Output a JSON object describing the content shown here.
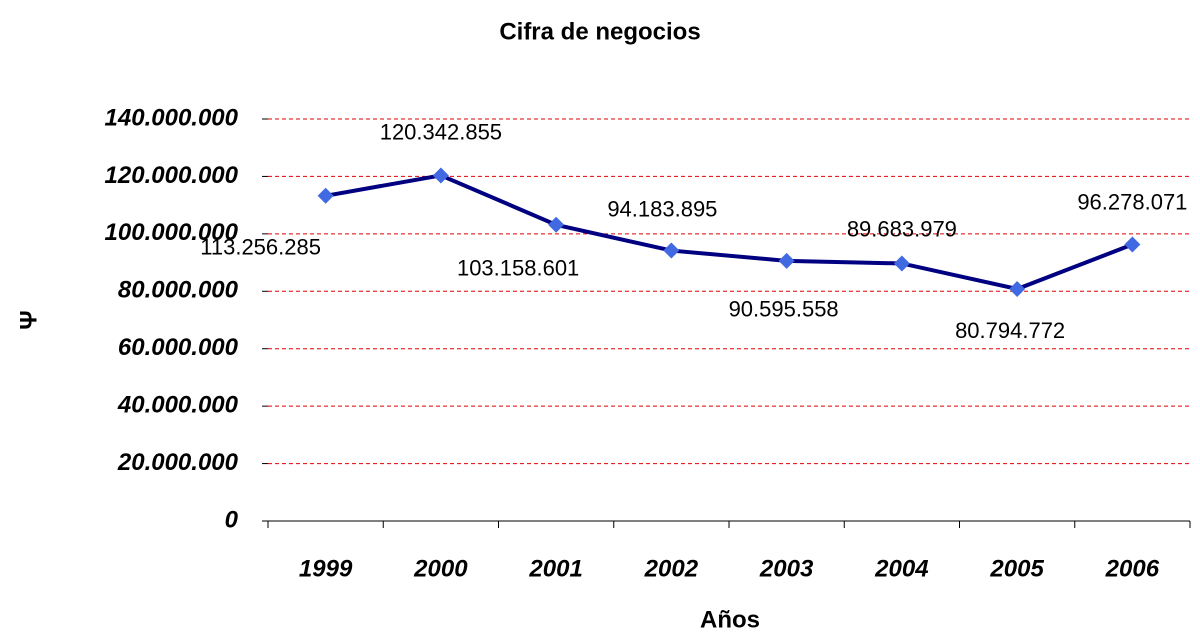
{
  "chart_data": {
    "type": "line",
    "title": "Cifra de negocios",
    "xlabel": "Años",
    "ylabel": "Ψ",
    "categories": [
      "1999",
      "2000",
      "2001",
      "2002",
      "2003",
      "2004",
      "2005",
      "2006"
    ],
    "series": [
      {
        "name": "Cifra de negocios",
        "color": "#000080",
        "marker_color": "#4169e1",
        "values": [
          113256285,
          120342855,
          103158601,
          94183895,
          90595558,
          89683979,
          80794772,
          96278071
        ],
        "value_labels": [
          "113.256.285",
          "120.342.855",
          "103.158.601",
          "94.183.895",
          "90.595.558",
          "89.683.979",
          "80.794.772",
          "96.278.071"
        ]
      }
    ],
    "ylim": [
      0,
      140000000
    ],
    "yticks": [
      0,
      {
        "value": 20000000,
        "label": "20.000.000"
      },
      {
        "value": 40000000,
        "label": "40.000.000"
      },
      {
        "value": 60000000,
        "label": "60.000.000"
      },
      {
        "value": 80000000,
        "label": "80.000.000"
      },
      {
        "value": 100000000,
        "label": "100.000.000"
      },
      {
        "value": 120000000,
        "label": "120.000.000"
      },
      {
        "value": 140000000,
        "label": "140.000.000"
      }
    ],
    "grid": true
  }
}
